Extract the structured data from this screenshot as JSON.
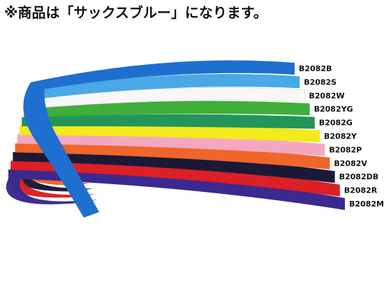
{
  "notice": {
    "text": "※商品は「サックスブルー」になります。"
  },
  "product": {
    "bands": [
      {
        "code": "B2082B",
        "color": "#1e6fd0"
      },
      {
        "code": "B2082S",
        "color": "#4aa8e6"
      },
      {
        "code": "B2082W",
        "color": "#f7f7f7"
      },
      {
        "code": "B2082YG",
        "color": "#3fae3a"
      },
      {
        "code": "B2082G",
        "color": "#23955a"
      },
      {
        "code": "B2082Y",
        "color": "#f4ea1c"
      },
      {
        "code": "B2082P",
        "color": "#f3a8c0"
      },
      {
        "code": "B2082V",
        "color": "#f0652a"
      },
      {
        "code": "B2082DB",
        "color": "#1a1a38"
      },
      {
        "code": "B2082R",
        "color": "#dd1f26"
      },
      {
        "code": "B2082M",
        "color": "#3a2a8f"
      }
    ]
  }
}
